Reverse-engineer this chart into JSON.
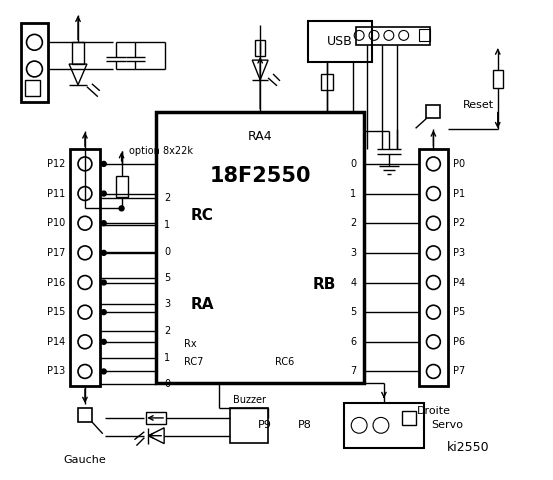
{
  "background_color": "#ffffff",
  "fig_width": 5.53,
  "fig_height": 4.8,
  "dpi": 100,
  "ic_label": "18F2550",
  "ic_sublabel": "RA4",
  "rc_label": "RC",
  "ra_label": "RA",
  "rb_label": "RB",
  "left_connector_pins": [
    "P12",
    "P11",
    "P10",
    "P17",
    "P16",
    "P15",
    "P14",
    "P13"
  ],
  "right_connector_pins": [
    "P0",
    "P1",
    "P2",
    "P3",
    "P4",
    "P5",
    "P6",
    "P7"
  ],
  "rc_pins": [
    "2",
    "1",
    "0"
  ],
  "ra_pins": [
    "5",
    "3",
    "2",
    "1",
    "0"
  ],
  "rb_pins": [
    "0",
    "1",
    "2",
    "3",
    "4",
    "5",
    "6",
    "7"
  ],
  "text_option": "option 8x22k",
  "text_gauche": "Gauche",
  "text_droite": "Droite",
  "text_servo": "Servo",
  "text_buzzer": "Buzzer",
  "text_usb": "USB",
  "text_reset": "Reset",
  "text_rc6": "RC6",
  "text_rc7": "RC7",
  "text_rx": "Rx",
  "text_p8": "P8",
  "text_p9": "P9",
  "text_ki": "ki2550"
}
